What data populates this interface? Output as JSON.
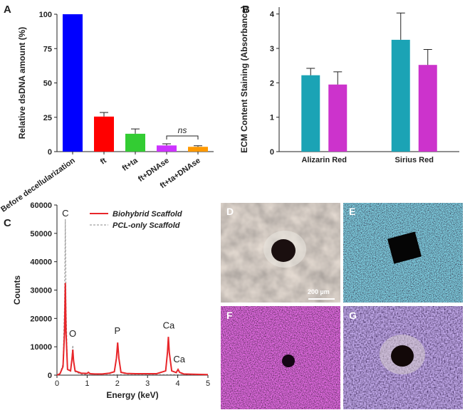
{
  "chart_data": [
    {
      "type": "bar",
      "label": "A",
      "ylabel": "Relative dsDNA amount (%)",
      "categories": [
        "Before decellularization",
        "ft",
        "ft+ta",
        "ft+DNAse",
        "ft+ta+DNAse"
      ],
      "values": [
        100,
        25.5,
        13,
        4.5,
        3.5
      ],
      "errors": [
        0,
        3,
        3.5,
        1.2,
        0.8
      ],
      "colors": [
        "#0000ff",
        "#ff0000",
        "#33cc33",
        "#cc33ff",
        "#ff9900"
      ],
      "ylim": [
        0,
        100
      ],
      "yticks": [
        0,
        25,
        50,
        75,
        100
      ],
      "annotations": [
        "ns"
      ]
    },
    {
      "type": "grouped_bar",
      "label": "B",
      "ylabel": "ECM Content Staining (Absorbance)",
      "categories": [
        "Alizarin Red",
        "Sirius Red"
      ],
      "series": [
        {
          "color": "#1ba3b5",
          "values": [
            2.22,
            3.25
          ],
          "errors": [
            0.2,
            0.78
          ]
        },
        {
          "color": "#cc33cc",
          "values": [
            1.95,
            2.52
          ],
          "errors": [
            0.37,
            0.45
          ]
        }
      ],
      "ylim": [
        0,
        4.2
      ],
      "yticks": [
        0,
        1,
        2,
        3,
        4
      ]
    },
    {
      "type": "line",
      "label": "C",
      "xlabel": "Energy (keV)",
      "ylabel": "Counts",
      "x": [
        0,
        0.1,
        0.2,
        0.25,
        0.277,
        0.3,
        0.35,
        0.45,
        0.5,
        0.525,
        0.55,
        0.6,
        0.8,
        1.0,
        1.04,
        1.1,
        1.25,
        1.5,
        1.74,
        1.9,
        1.97,
        2.01,
        2.05,
        2.12,
        2.3,
        2.6,
        3.0,
        3.3,
        3.6,
        3.66,
        3.69,
        3.72,
        3.8,
        3.95,
        4.01,
        4.06,
        4.2,
        4.5,
        5.0
      ],
      "series": [
        {
          "name": "Biohybrid Scaffold",
          "color": "#e8262a",
          "dash": false,
          "values": [
            0,
            500,
            3000,
            15000,
            32500,
            15000,
            2000,
            1500,
            6000,
            9000,
            5000,
            1500,
            700,
            600,
            1000,
            500,
            400,
            400,
            700,
            1200,
            6000,
            11500,
            6000,
            1000,
            600,
            500,
            500,
            500,
            1500,
            8000,
            13500,
            8000,
            1500,
            900,
            2000,
            1000,
            400,
            300,
            200
          ]
        },
        {
          "name": "PCL-only Scaffold",
          "color": "#8a8a8a",
          "dash": true,
          "values": [
            0,
            500,
            4000,
            25000,
            55000,
            25000,
            2000,
            1500,
            7000,
            10500,
            5500,
            1200,
            300,
            200,
            200,
            200,
            200,
            200,
            200,
            200,
            200,
            200,
            200,
            200,
            200,
            200,
            200,
            200,
            200,
            200,
            200,
            200,
            200,
            200,
            200,
            200,
            200,
            200,
            200
          ]
        }
      ],
      "xlim": [
        0,
        5
      ],
      "xticks": [
        0,
        1,
        2,
        3,
        4,
        5
      ],
      "ylim": [
        0,
        60000
      ],
      "yticks": [
        0,
        10000,
        20000,
        30000,
        40000,
        50000,
        60000
      ],
      "annotations": [
        "C",
        "O",
        "P",
        "Ca",
        "Ca"
      ]
    }
  ],
  "images": [
    {
      "label": "D",
      "scale_bar": "200 µm"
    },
    {
      "label": "E"
    },
    {
      "label": "F"
    },
    {
      "label": "G"
    }
  ]
}
